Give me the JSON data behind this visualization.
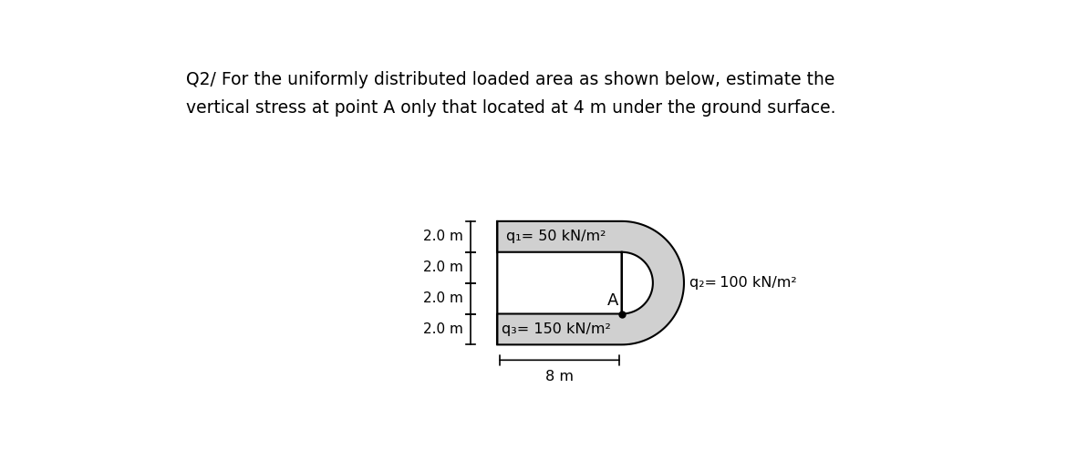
{
  "title_line1": "Q2/ For the uniformly distributed loaded area as shown below, estimate the",
  "title_line2": "vertical stress at point A only that located at 4 m under the ground surface.",
  "bg_color": "#ffffff",
  "shape_fill": "#d0d0d0",
  "shape_edge": "#000000",
  "dim_labels": [
    "2.0 m",
    "2.0 m",
    "2.0 m",
    "2.0 m"
  ],
  "q1_label": "q₁= 50 kN/m²",
  "q2_label": "q₂= 100 kN/m²",
  "q3_label": "q₃= 150 kN/m²",
  "width_label": "8 m",
  "point_A_label": "A",
  "title_fontsize": 13.5,
  "label_fontsize": 11.5,
  "dim_fontsize": 11
}
